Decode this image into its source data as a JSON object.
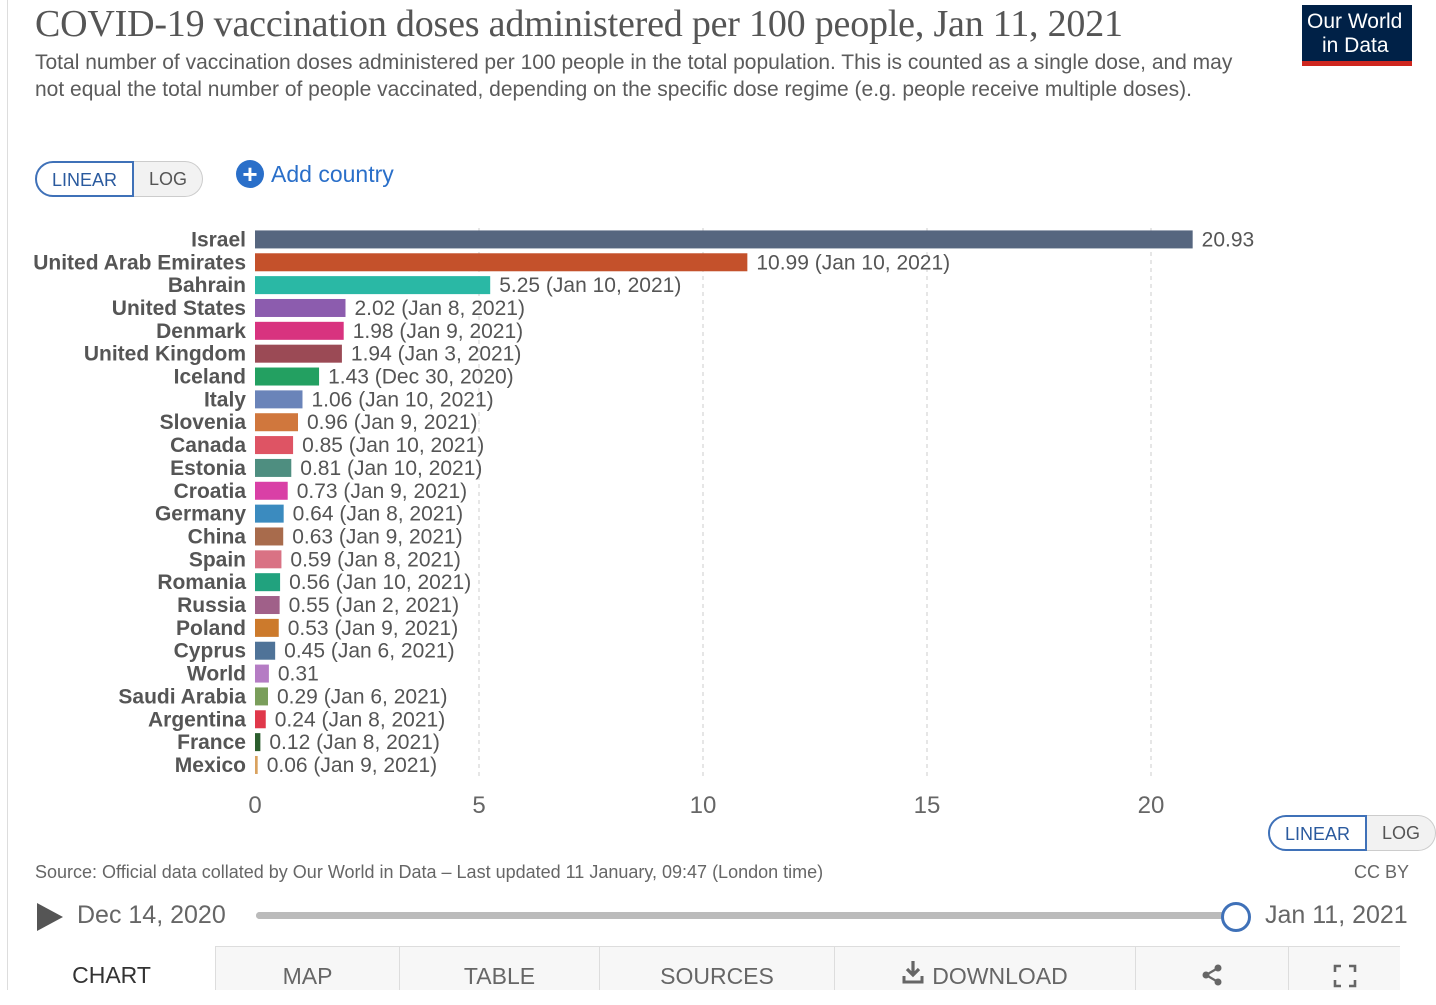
{
  "header": {
    "title": "COVID-19 vaccination doses administered per 100 people, Jan 11, 2021",
    "subtitle": "Total number of vaccination doses administered per 100 people in the total population. This is counted as a single dose, and may not equal the total number of people vaccinated, depending on the specific dose regime (e.g. people receive multiple doses).",
    "logo_line1": "Our World",
    "logo_line2": "in Data"
  },
  "controls": {
    "linear_label": "LINEAR",
    "log_label": "LOG",
    "add_country_label": "Add country"
  },
  "chart_data": {
    "type": "bar",
    "orientation": "horizontal",
    "xlim": [
      0,
      21
    ],
    "xticks": [
      0,
      5,
      10,
      15,
      20
    ],
    "grid": "vertical dashed",
    "bars": [
      {
        "country": "Israel",
        "value": 20.93,
        "label": "20.93",
        "color": "#56667f"
      },
      {
        "country": "United Arab Emirates",
        "value": 10.99,
        "label": "10.99 (Jan 10, 2021)",
        "color": "#c4512b"
      },
      {
        "country": "Bahrain",
        "value": 5.25,
        "label": "5.25 (Jan 10, 2021)",
        "color": "#2ab8a5"
      },
      {
        "country": "United States",
        "value": 2.02,
        "label": "2.02 (Jan 8, 2021)",
        "color": "#8c5cae"
      },
      {
        "country": "Denmark",
        "value": 1.98,
        "label": "1.98 (Jan 9, 2021)",
        "color": "#d8337f"
      },
      {
        "country": "United Kingdom",
        "value": 1.94,
        "label": "1.94 (Jan 3, 2021)",
        "color": "#9b4a55"
      },
      {
        "country": "Iceland",
        "value": 1.43,
        "label": "1.43 (Dec 30, 2020)",
        "color": "#23a061"
      },
      {
        "country": "Italy",
        "value": 1.06,
        "label": "1.06 (Jan 10, 2021)",
        "color": "#6a84b9"
      },
      {
        "country": "Slovenia",
        "value": 0.96,
        "label": "0.96 (Jan 9, 2021)",
        "color": "#d0773d"
      },
      {
        "country": "Canada",
        "value": 0.85,
        "label": "0.85 (Jan 10, 2021)",
        "color": "#de5464"
      },
      {
        "country": "Estonia",
        "value": 0.81,
        "label": "0.81 (Jan 10, 2021)",
        "color": "#4e8e80"
      },
      {
        "country": "Croatia",
        "value": 0.73,
        "label": "0.73 (Jan 9, 2021)",
        "color": "#d940a6"
      },
      {
        "country": "Germany",
        "value": 0.64,
        "label": "0.64 (Jan 8, 2021)",
        "color": "#3b8bbf"
      },
      {
        "country": "China",
        "value": 0.63,
        "label": "0.63 (Jan 9, 2021)",
        "color": "#a86b4c"
      },
      {
        "country": "Spain",
        "value": 0.59,
        "label": "0.59 (Jan 8, 2021)",
        "color": "#d97284"
      },
      {
        "country": "Romania",
        "value": 0.56,
        "label": "0.56 (Jan 10, 2021)",
        "color": "#21a27e"
      },
      {
        "country": "Russia",
        "value": 0.55,
        "label": "0.55 (Jan 2, 2021)",
        "color": "#a06089"
      },
      {
        "country": "Poland",
        "value": 0.53,
        "label": "0.53 (Jan 9, 2021)",
        "color": "#cc7a2c"
      },
      {
        "country": "Cyprus",
        "value": 0.45,
        "label": "0.45 (Jan 6, 2021)",
        "color": "#4f7398"
      },
      {
        "country": "World",
        "value": 0.31,
        "label": "0.31",
        "color": "#b57cc4"
      },
      {
        "country": "Saudi Arabia",
        "value": 0.29,
        "label": "0.29 (Jan 6, 2021)",
        "color": "#7a9e5b"
      },
      {
        "country": "Argentina",
        "value": 0.24,
        "label": "0.24 (Jan 8, 2021)",
        "color": "#e0384a"
      },
      {
        "country": "France",
        "value": 0.12,
        "label": "0.12 (Jan 8, 2021)",
        "color": "#2c5e2e"
      },
      {
        "country": "Mexico",
        "value": 0.06,
        "label": "0.06 (Jan 9, 2021)",
        "color": "#d9a25f"
      }
    ]
  },
  "footer": {
    "source": "Source: Official data collated by Our World in Data – Last updated 11 January, 09:47 (London time)",
    "license": "CC BY",
    "start_date": "Dec 14, 2020",
    "end_date": "Jan 11, 2021",
    "timeline_position": 1.0
  },
  "tabs": [
    "CHART",
    "MAP",
    "TABLE",
    "SOURCES",
    "DOWNLOAD"
  ],
  "colors": {
    "accent": "#3f71b8",
    "logo_bg": "#002147",
    "logo_red": "#ce261e"
  }
}
